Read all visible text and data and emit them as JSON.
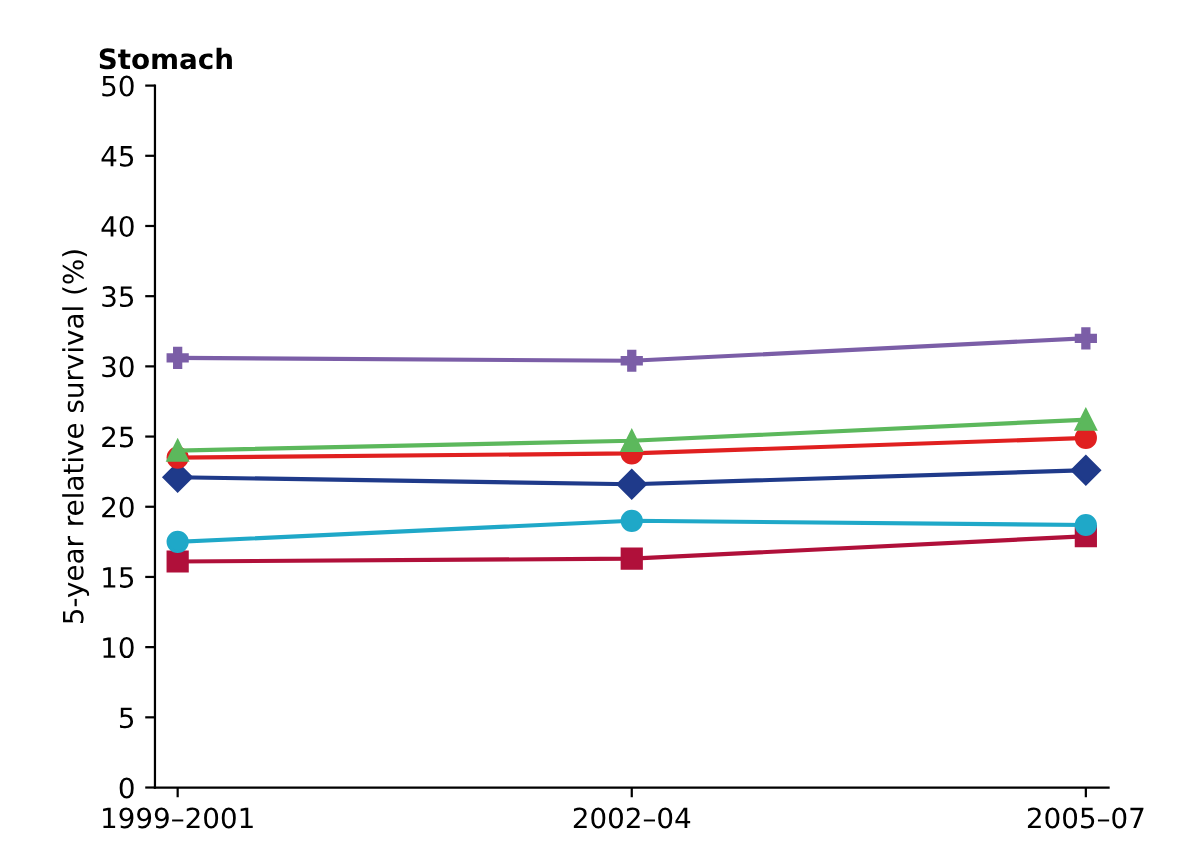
{
  "chart_data": {
    "type": "line",
    "title": "Stomach",
    "ylabel": "5-year relative survival (%)",
    "categories": [
      "1999–2001",
      "2002–04",
      "2005–07"
    ],
    "ylim": [
      0,
      50
    ],
    "yticks": [
      0,
      5,
      10,
      15,
      20,
      25,
      30,
      35,
      40,
      45,
      50
    ],
    "grid": false,
    "legend": false,
    "series": [
      {
        "color": "#7b5ea7",
        "marker": "cross",
        "values": [
          30.6,
          30.4,
          32.0
        ]
      },
      {
        "color": "#5cb85c",
        "marker": "triangle",
        "values": [
          24.0,
          24.7,
          26.2
        ]
      },
      {
        "color": "#e02020",
        "marker": "circle",
        "values": [
          23.5,
          23.8,
          24.9
        ]
      },
      {
        "color": "#1f3a8a",
        "marker": "diamond",
        "values": [
          22.1,
          21.6,
          22.6
        ]
      },
      {
        "color": "#1fa8c8",
        "marker": "circle",
        "values": [
          17.5,
          19.0,
          18.7
        ]
      },
      {
        "color": "#b0103a",
        "marker": "square",
        "values": [
          16.1,
          16.3,
          17.9
        ]
      }
    ]
  }
}
